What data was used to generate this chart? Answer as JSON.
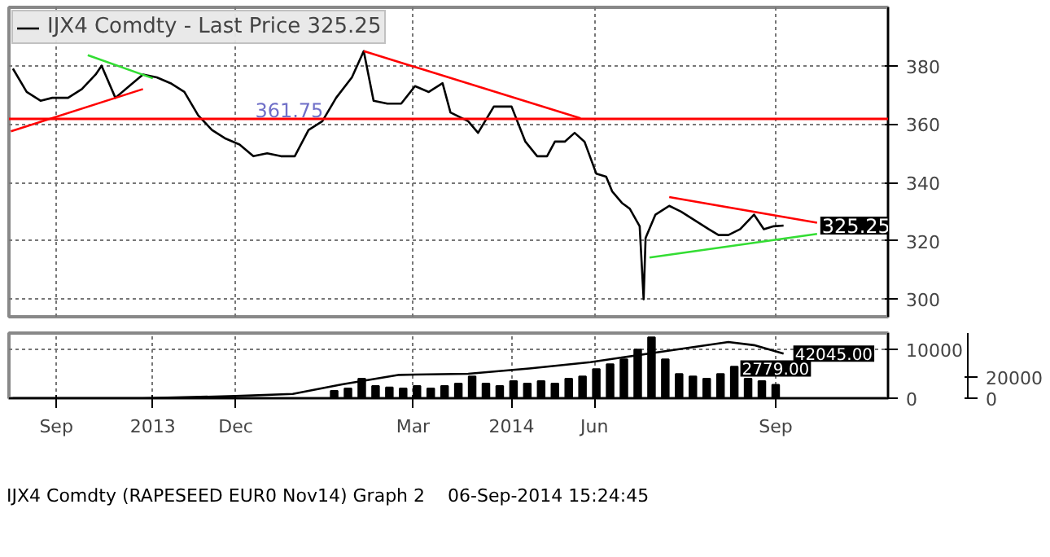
{
  "chart_data": [
    {
      "type": "line",
      "xlim": [
        "2013-08-08",
        "2014-10-28"
      ],
      "ylim": [
        294,
        400
      ],
      "yticks": [
        300,
        320,
        340,
        360,
        380
      ],
      "xticks": [
        {
          "value": "2013-09-01",
          "label": null
        },
        {
          "value": "2013-12-01",
          "label": null
        },
        {
          "value": "2014-03-01",
          "label": null
        },
        {
          "value": "2014-06-01",
          "label": null
        },
        {
          "value": "2014-09-01",
          "label": null
        }
      ],
      "tick_labels": "y",
      "grid": true,
      "legend": "top left",
      "series": [
        {
          "name": "IJX4 Comdty - Last Price 325.25",
          "color": "#000000",
          "x": [
            "2013-08-10",
            "2013-08-17",
            "2013-08-24",
            "2013-08-30",
            "2013-09-07",
            "2013-09-14",
            "2013-09-21",
            "2013-09-24",
            "2013-10-01",
            "2013-10-08",
            "2013-10-15",
            "2013-10-22",
            "2013-10-29",
            "2013-11-05",
            "2013-11-12",
            "2013-11-19",
            "2013-11-26",
            "2013-12-03",
            "2013-12-10",
            "2013-12-17",
            "2013-12-24",
            "2013-12-31",
            "2014-01-07",
            "2014-01-14",
            "2014-01-21",
            "2014-01-29",
            "2014-02-04",
            "2014-02-09",
            "2014-02-16",
            "2014-02-23",
            "2014-03-02",
            "2014-03-09",
            "2014-03-16",
            "2014-03-20",
            "2014-03-29",
            "2014-04-03",
            "2014-04-11",
            "2014-04-20",
            "2014-04-27",
            "2014-05-03",
            "2014-05-08",
            "2014-05-12",
            "2014-05-17",
            "2014-05-22",
            "2014-05-27",
            "2014-06-02",
            "2014-06-07",
            "2014-06-10",
            "2014-06-15",
            "2014-06-19",
            "2014-06-24",
            "2014-06-26",
            "2014-06-27",
            "2014-07-02",
            "2014-07-09",
            "2014-07-15",
            "2014-07-22",
            "2014-07-29",
            "2014-08-03",
            "2014-08-08",
            "2014-08-14",
            "2014-08-21",
            "2014-08-26",
            "2014-08-31",
            "2014-09-05"
          ],
          "values": [
            379,
            371,
            368,
            369,
            369,
            372,
            377,
            380,
            369,
            373,
            377,
            376,
            374,
            371,
            363,
            358,
            355,
            353,
            349,
            350,
            349,
            349,
            358,
            361,
            369,
            376,
            385,
            368,
            367,
            367,
            373,
            371,
            374,
            364,
            361,
            357,
            366,
            366,
            354,
            349,
            349,
            354,
            354,
            357,
            354,
            343,
            342,
            337,
            333,
            331,
            325,
            300,
            321,
            329,
            332,
            330,
            327,
            324,
            322,
            322,
            324,
            329,
            324,
            325,
            325.25
          ]
        },
        {
          "type": "line",
          "color": "#ff0000",
          "x": [
            "2013-08-09",
            "2013-10-15"
          ],
          "values": [
            357.5,
            372
          ]
        },
        {
          "type": "line",
          "color": "#33dd33",
          "x": [
            "2013-09-17",
            "2013-10-20"
          ],
          "values": [
            383.6,
            375.7
          ]
        },
        {
          "type": "line",
          "color": "#ff0000",
          "x": [
            "2014-02-04",
            "2014-05-25"
          ],
          "values": [
            385,
            362
          ]
        },
        {
          "type": "line",
          "color": "#ff0000",
          "x": [
            "2014-07-09",
            "2014-09-22"
          ],
          "values": [
            335,
            326.2
          ]
        },
        {
          "type": "line",
          "color": "#33dd33",
          "x": [
            "2014-06-29",
            "2014-09-22"
          ],
          "values": [
            314.3,
            322.4
          ]
        }
      ],
      "ref_lines": [
        {
          "axis": "y",
          "value": 361.75,
          "label": "361.75",
          "color": "#ff0000"
        }
      ],
      "annotations": [
        {
          "text": "325.25",
          "x": "2014-09-22",
          "y": 325.25
        }
      ]
    },
    {
      "type": "bar",
      "xlim": [
        "2013-08-08",
        "2014-10-28"
      ],
      "ylim": [
        0,
        13400
      ],
      "yticks": [
        0,
        10000
      ],
      "y2lim": [
        0,
        61400
      ],
      "y2ticks": [
        0,
        20000
      ],
      "xticks": [
        {
          "value": "2013-09-01",
          "label": "Sep"
        },
        {
          "value": "2013-10-20",
          "label": "2013"
        },
        {
          "value": "2013-12-01",
          "label": "Dec"
        },
        {
          "value": "2014-03-01",
          "label": "Mar"
        },
        {
          "value": "2014-04-20",
          "label": "2014"
        },
        {
          "value": "2014-06-01",
          "label": "Jun"
        },
        {
          "value": "2014-09-01",
          "label": "Sep"
        }
      ],
      "grid": true,
      "series": [
        {
          "color": "#000000",
          "x": [
            "2014-01-20",
            "2014-01-27",
            "2014-02-03",
            "2014-02-10",
            "2014-02-17",
            "2014-02-24",
            "2014-03-03",
            "2014-03-10",
            "2014-03-17",
            "2014-03-24",
            "2014-03-31",
            "2014-04-07",
            "2014-04-14",
            "2014-04-21",
            "2014-04-28",
            "2014-05-05",
            "2014-05-12",
            "2014-05-19",
            "2014-05-26",
            "2014-06-02",
            "2014-06-09",
            "2014-06-16",
            "2014-06-23",
            "2014-06-30",
            "2014-07-07",
            "2014-07-14",
            "2014-07-21",
            "2014-07-28",
            "2014-08-04",
            "2014-08-11",
            "2014-08-18",
            "2014-08-25",
            "2014-09-01"
          ],
          "values": [
            1500,
            2000,
            4000,
            2500,
            2200,
            2000,
            2500,
            2000,
            2500,
            3000,
            4500,
            3000,
            2500,
            3500,
            3000,
            3500,
            3000,
            4000,
            4500,
            6000,
            7000,
            8000,
            10000,
            12500,
            8000,
            5000,
            4500,
            4000,
            5000,
            6500,
            4000,
            3500,
            2779
          ],
          "value_labels": [
            null,
            null,
            null,
            null,
            null,
            null,
            null,
            null,
            null,
            null,
            null,
            null,
            null,
            null,
            null,
            null,
            null,
            null,
            null,
            null,
            null,
            null,
            null,
            null,
            null,
            null,
            null,
            null,
            null,
            null,
            null,
            null,
            "2779.00"
          ]
        },
        {
          "type": "line",
          "axis": "y2",
          "color": "#000000",
          "x": [
            "2013-08-10",
            "2013-10-15",
            "2013-12-01",
            "2013-12-30",
            "2014-01-24",
            "2014-02-22",
            "2014-03-29",
            "2014-04-29",
            "2014-05-30",
            "2014-07-02",
            "2014-08-08",
            "2014-08-21",
            "2014-09-05"
          ],
          "values": [
            0,
            0,
            2000,
            4000,
            13000,
            22000,
            23000,
            28000,
            34000,
            43000,
            53000,
            50000,
            42045
          ],
          "value_labels": [
            null,
            null,
            null,
            null,
            null,
            null,
            null,
            null,
            null,
            null,
            null,
            null,
            "42045.00"
          ]
        }
      ],
      "annotations": [
        "IJX4 Comdty (RAPESEED EUR0 Nov14) Graph 2",
        "06-Sep-2014 15:24:45"
      ]
    }
  ]
}
